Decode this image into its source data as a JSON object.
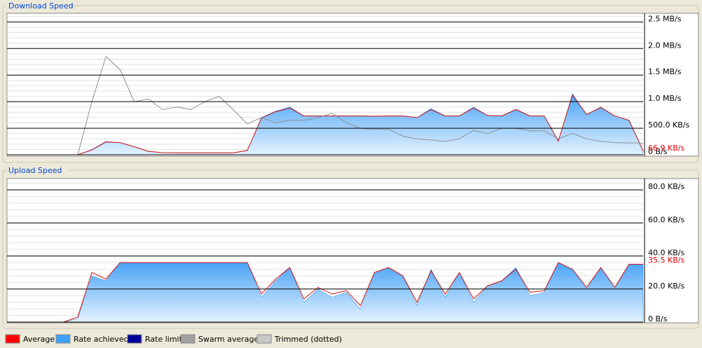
{
  "chart_data": [
    {
      "type": "area",
      "title": "Download Speed",
      "ylim": [
        0,
        2650
      ],
      "yticks": [
        {
          "value": 0,
          "label": "0 B/s"
        },
        {
          "value": 500,
          "label": "500.0 KB/s"
        },
        {
          "value": 1000,
          "label": "1.0 MB/s"
        },
        {
          "value": 1500,
          "label": "1.5 MB/s"
        },
        {
          "value": 2000,
          "label": "2.0 MB/s"
        },
        {
          "value": 2500,
          "label": "2.5 MB/s"
        }
      ],
      "current": {
        "value": 66.9,
        "label": "66.9 KB/s"
      },
      "series": [
        {
          "role": "fill",
          "color": "#3fa0f8",
          "values": [
            0,
            0,
            0,
            0,
            0,
            0,
            100,
            250,
            230,
            150,
            60,
            40,
            35,
            35,
            35,
            35,
            35,
            80,
            700,
            820,
            900,
            730,
            730,
            730,
            730,
            730,
            720,
            730,
            730,
            700,
            870,
            730,
            730,
            900,
            740,
            730,
            860,
            730,
            730,
            250,
            1150,
            750,
            900,
            730,
            650,
            70
          ]
        },
        {
          "role": "line",
          "color": "#d01010",
          "values": [
            0,
            0,
            0,
            0,
            0,
            0,
            90,
            240,
            230,
            150,
            65,
            40,
            35,
            35,
            35,
            35,
            35,
            80,
            690,
            810,
            880,
            730,
            730,
            730,
            730,
            730,
            725,
            730,
            730,
            700,
            850,
            730,
            730,
            880,
            740,
            730,
            850,
            730,
            730,
            260,
            1120,
            760,
            890,
            730,
            650,
            70
          ]
        },
        {
          "role": "line",
          "color": "#909090",
          "values": [
            0,
            0,
            0,
            0,
            0,
            0,
            1000,
            1850,
            1600,
            1000,
            1050,
            850,
            900,
            850,
            1000,
            1100,
            850,
            580,
            700,
            600,
            650,
            650,
            700,
            780,
            600,
            500,
            480,
            480,
            350,
            300,
            280,
            250,
            300,
            460,
            400,
            500,
            500,
            450,
            450,
            300,
            400,
            300,
            250,
            230,
            220,
            220
          ]
        }
      ]
    },
    {
      "type": "area",
      "title": "Upload Speed",
      "ylim": [
        0,
        86
      ],
      "yticks": [
        {
          "value": 0,
          "label": "0 B/s"
        },
        {
          "value": 20,
          "label": "20.0 KB/s"
        },
        {
          "value": 40,
          "label": "40.0 KB/s"
        },
        {
          "value": 60,
          "label": "60.0 KB/s"
        },
        {
          "value": 80,
          "label": "80.0 KB/s"
        }
      ],
      "current": {
        "value": 35.5,
        "label": "35.5 KB/s"
      },
      "series": [
        {
          "role": "fill",
          "color": "#3fa0f8",
          "values": [
            0,
            0,
            0,
            0,
            0,
            2,
            28,
            25,
            36,
            36,
            36,
            36,
            36,
            36,
            36,
            36,
            36,
            36,
            15,
            25,
            33,
            12,
            20,
            15,
            18,
            8,
            30,
            33,
            28,
            10,
            32,
            15,
            30,
            12,
            22,
            25,
            33,
            16,
            18,
            36,
            32,
            20,
            33,
            20,
            35,
            35
          ]
        },
        {
          "role": "line",
          "color": "#d01010",
          "values": [
            0,
            0,
            0,
            0,
            0,
            3,
            30,
            26,
            36,
            36,
            36,
            36,
            36,
            36,
            36,
            36,
            36,
            36,
            17,
            26,
            33,
            14,
            21,
            17,
            19,
            10,
            30,
            33,
            28,
            12,
            31,
            17,
            30,
            14,
            22,
            25,
            32,
            18,
            19,
            36,
            32,
            21,
            33,
            21,
            35,
            35
          ]
        }
      ]
    }
  ],
  "legend": [
    {
      "label": "Average",
      "color": "#ff0000"
    },
    {
      "label": "Rate achieved",
      "color": "#3fa0f8"
    },
    {
      "label": "Rate limit",
      "color": "#000099"
    },
    {
      "label": "Swarm average",
      "color": "#a0a0a0"
    },
    {
      "label": "Trimmed (dotted)",
      "color": "#c8c8c8"
    }
  ]
}
